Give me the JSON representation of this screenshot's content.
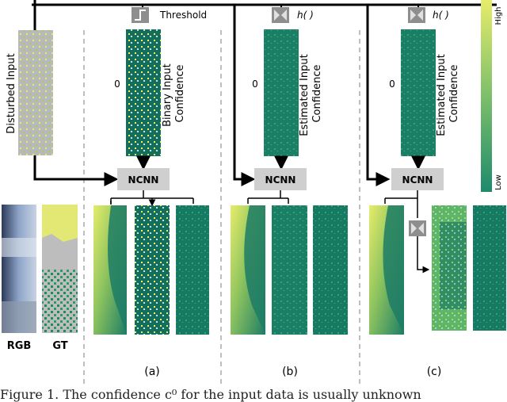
{
  "diagram": {
    "input_label": "Disturbed Input",
    "threshold_label": "Threshold",
    "h_label_b": "h(  )",
    "h_label_c": "h(  )",
    "zero_label_a": "0",
    "zero_label_b": "0",
    "zero_label_c": "0",
    "conf_label_a": [
      "Binary Input",
      "Confidence"
    ],
    "conf_label_b": [
      "Estimated Input",
      "Confidence"
    ],
    "conf_label_c": [
      "Estimated Input",
      "Confidence"
    ],
    "ncnn_a": "NCNN",
    "ncnn_b": "NCNN",
    "ncnn_c": "NCNN",
    "rgb_label": "RGB",
    "gt_label": "GT",
    "panel_a": "(a)",
    "panel_b": "(b)",
    "panel_c": "(c)",
    "colorbar": {
      "high": "High",
      "low": "Low",
      "color_low": "#1e8a6c",
      "color_high": "#e6ec6a"
    }
  },
  "colors": {
    "teal_dark": "#0f6b5b",
    "teal": "#1f8a70",
    "yellow": "#e6ec6a",
    "gray": "#bcbcbc",
    "ncnn_box": "#cfcfcf"
  },
  "caption": "Figure 1. The confidence c⁰ for the input data is usually unknown"
}
